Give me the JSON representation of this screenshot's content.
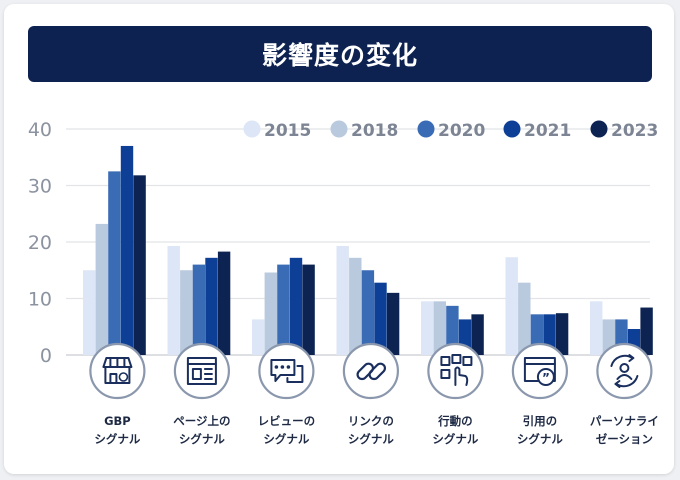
{
  "title": "影響度の変化",
  "chart_data": {
    "type": "bar",
    "title": "影響度の変化",
    "ylim": [
      0,
      40
    ],
    "yticks": [
      0,
      10,
      20,
      30,
      40
    ],
    "grid": true,
    "legend_position": "top-right",
    "categories": [
      [
        "GBP",
        "シグナル"
      ],
      [
        "ページ上の",
        "シグナル"
      ],
      [
        "レビューの",
        "シグナル"
      ],
      [
        "リンクの",
        "シグナル"
      ],
      [
        "行動の",
        "シグナル"
      ],
      [
        "引用の",
        "シグナル"
      ],
      [
        "パーソナライ",
        "ゼーション"
      ]
    ],
    "category_icons": [
      "store-icon",
      "webpage-icon",
      "review-icon",
      "link-icon",
      "touch-icon",
      "citation-icon",
      "personalization-icon"
    ],
    "series": [
      {
        "name": "2015",
        "color": "#dce6f6",
        "values": [
          15,
          19.3,
          6.3,
          19.3,
          9.5,
          17.3,
          9.5
        ]
      },
      {
        "name": "2018",
        "color": "#b9c9de",
        "values": [
          23.2,
          15,
          14.6,
          17.2,
          9.5,
          12.8,
          6.3
        ]
      },
      {
        "name": "2020",
        "color": "#3a6bb5",
        "values": [
          32.5,
          16,
          16,
          15,
          8.7,
          7.2,
          6.3
        ]
      },
      {
        "name": "2021",
        "color": "#0e3f97",
        "values": [
          37,
          17.2,
          17.2,
          12.8,
          6.3,
          7.2,
          4.6
        ]
      },
      {
        "name": "2023",
        "color": "#0d2453",
        "values": [
          31.8,
          18.3,
          16,
          11,
          7.2,
          7.4,
          8.4
        ]
      }
    ]
  }
}
